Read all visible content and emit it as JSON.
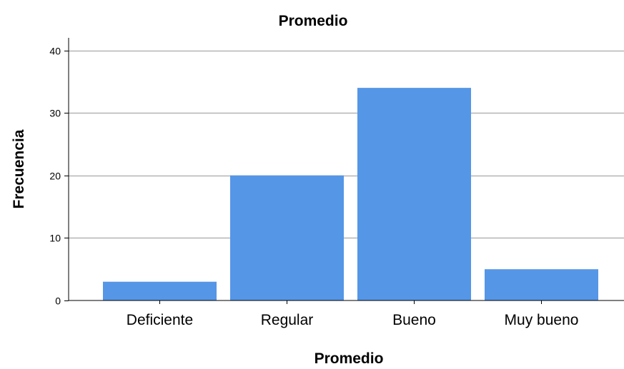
{
  "chart_data": {
    "type": "bar",
    "title": "Promedio",
    "xlabel": "Promedio",
    "ylabel": "Frecuencia",
    "categories": [
      "Deficiente",
      "Regular",
      "Bueno",
      "Muy bueno"
    ],
    "values": [
      3,
      20,
      34,
      5
    ],
    "ylim": [
      0,
      42
    ],
    "yticks": [
      0,
      10,
      20,
      30,
      40
    ],
    "grid": true,
    "legend": "none",
    "bar_color": "#5596E6",
    "grid_color": "#B4B4B4",
    "axis_color": "#000000"
  }
}
